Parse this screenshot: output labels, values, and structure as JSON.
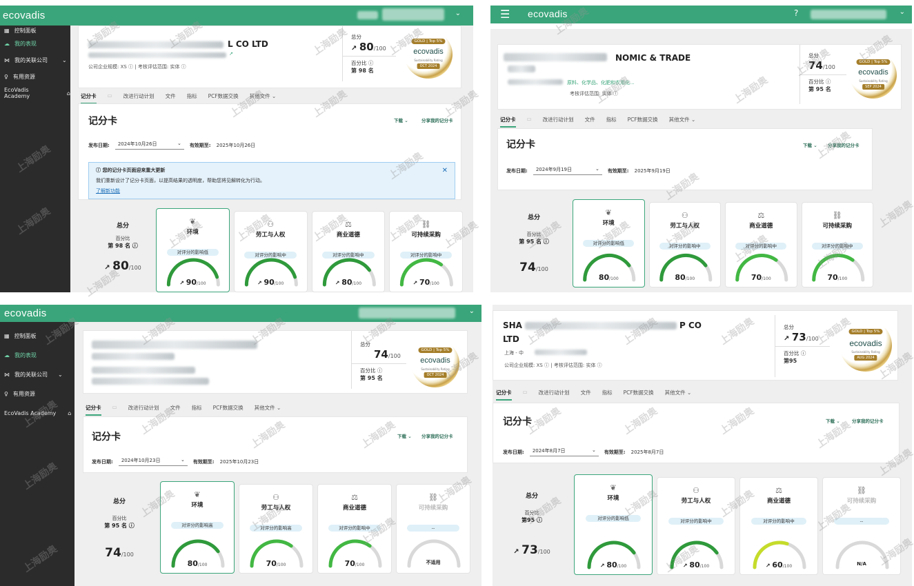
{
  "brand": "ecovadis",
  "colors": {
    "brand_green": "#3aa57a",
    "sidebar": "#2b2b2b",
    "gauge_green": "#42b843",
    "gauge_dark": "#2f9a3b",
    "gauge_lime": "#c5dc2a"
  },
  "sidebar_items": [
    "控制面板",
    "我的表现",
    "我的关联公司",
    "有用资源",
    "EcoVadis Academy"
  ],
  "tabs": [
    "记分卡",
    "改进行动计划",
    "文件",
    "指标",
    "PCF数据交换",
    "其他文件"
  ],
  "common": {
    "scorecard_title": "记分卡",
    "download": "下载",
    "share": "分享我的记分卡",
    "publish_label": "发布日期:",
    "expiry_label": "有效期至:",
    "overall_label": "总分",
    "total_label": "总分",
    "percentile_label": "百分比",
    "badge_top": "GOLD | Top 5%",
    "badge_sub": "Sustainability Rating",
    "themes": [
      "环境",
      "劳工与人权",
      "商业道德",
      "可持续采购"
    ]
  },
  "panels": [
    {
      "company_suffix": "L CO LTD",
      "meta": "公司企业规模: XS ⓘ | 考核评估范围: 实体 ⓘ",
      "overall_score": "80",
      "rank": "第 98 名",
      "badge_date": "OCT 2024",
      "publish_date": "2024年10月26日",
      "expiry_date": "2025年10月26日",
      "notice_title": "您的记分卡页面迎来重大更新",
      "notice_body": "我们重新设计了记分卡页面，以提高结果的透明度，帮助您将见解转化为行动。",
      "notice_link": "了解新功能",
      "tiles": [
        {
          "impact": "对评分的影响低",
          "score": "90",
          "arrow": "↗"
        },
        {
          "impact": "对评分的影响中",
          "score": "90",
          "arrow": "↗"
        },
        {
          "impact": "对评分的影响中",
          "score": "80",
          "arrow": "↗"
        },
        {
          "impact": "对评分的影响中",
          "score": "70",
          "arrow": "↗"
        }
      ]
    },
    {
      "company_suffix": "NOMIC & TRADE",
      "meta_fragment": "原料、化学品、化肥和农用化...",
      "meta_scope": "考核评估范围: 实体 ⓘ",
      "overall_score": "74",
      "rank": "第 95 名",
      "badge_date": "SEP 2024",
      "publish_date": "2024年9月19日",
      "expiry_date": "2025年9月19日",
      "tiles": [
        {
          "impact": "对评分的影响低",
          "score": "80",
          "arrow": ""
        },
        {
          "impact": "对评分的影响中",
          "score": "80",
          "arrow": ""
        },
        {
          "impact": "对评分的影响中",
          "score": "70",
          "arrow": ""
        },
        {
          "impact": "对评分的影响中",
          "score": "70",
          "arrow": ""
        }
      ]
    },
    {
      "overall_score": "74",
      "rank": "第 95 名",
      "badge_date": "OCT 2024",
      "publish_date": "2024年10月23日",
      "expiry_date": "2025年10月23日",
      "tiles": [
        {
          "impact": "对评分的影响高",
          "score": "80",
          "arrow": ""
        },
        {
          "impact": "对评分的影响高",
          "score": "70",
          "arrow": ""
        },
        {
          "impact": "对评分的影响中",
          "score": "70",
          "arrow": ""
        },
        {
          "impact": "--",
          "score": "不适用",
          "arrow": ""
        }
      ]
    },
    {
      "company_prefix": "SHA",
      "company_suffix": "P CO",
      "company_line2": "LTD",
      "location": "上海 - 中",
      "meta": "公司企业规模: XS ⓘ | 考核评估范围: 实体 ⓘ",
      "overall_score": "73",
      "rank": "第95",
      "badge_date": "AUG 2024",
      "publish_date": "2024年8月7日",
      "expiry_date": "2025年8月7日",
      "tiles": [
        {
          "impact": "对评分的影响低",
          "score": "80",
          "arrow": "↗"
        },
        {
          "impact": "对评分的影响中",
          "score": "80",
          "arrow": "↗"
        },
        {
          "impact": "对评分的影响中",
          "score": "60",
          "arrow": "↗"
        },
        {
          "impact": "--",
          "score": "N/A",
          "arrow": ""
        }
      ]
    }
  ],
  "watermark": "上海励奥"
}
